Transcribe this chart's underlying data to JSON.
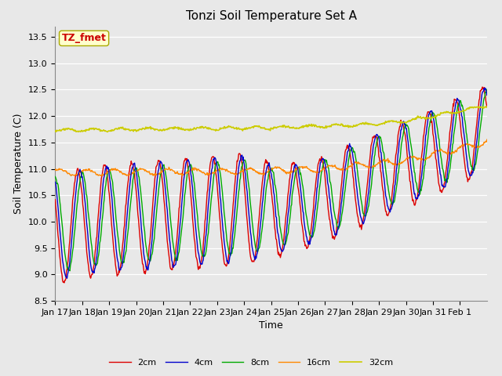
{
  "title": "Tonzi Soil Temperature Set A",
  "xlabel": "Time",
  "ylabel": "Soil Temperature (C)",
  "ylim": [
    8.5,
    13.7
  ],
  "xlim_days": 16,
  "annotation_text": "TZ_fmet",
  "annotation_color": "#cc0000",
  "annotation_bg": "#ffffcc",
  "annotation_border": "#aaaa00",
  "bg_color": "#e8e8e8",
  "plot_bg": "#e8e8e8",
  "grid_color": "#ffffff",
  "series": {
    "2cm": {
      "color": "#dd0000",
      "lw": 1.0
    },
    "4cm": {
      "color": "#0000cc",
      "lw": 1.0
    },
    "8cm": {
      "color": "#00aa00",
      "lw": 1.0
    },
    "16cm": {
      "color": "#ff8800",
      "lw": 1.0
    },
    "32cm": {
      "color": "#cccc00",
      "lw": 1.2
    }
  },
  "xtick_labels": [
    "Jan 17",
    "Jan 18",
    "Jan 19",
    "Jan 20",
    "Jan 21",
    "Jan 22",
    "Jan 23",
    "Jan 24",
    "Jan 25",
    "Jan 26",
    "Jan 27",
    "Jan 28",
    "Jan 29",
    "Jan 30",
    "Jan 31",
    "Feb 1"
  ],
  "legend_ncol": 5,
  "title_fontsize": 11,
  "axis_fontsize": 9,
  "tick_fontsize": 8
}
